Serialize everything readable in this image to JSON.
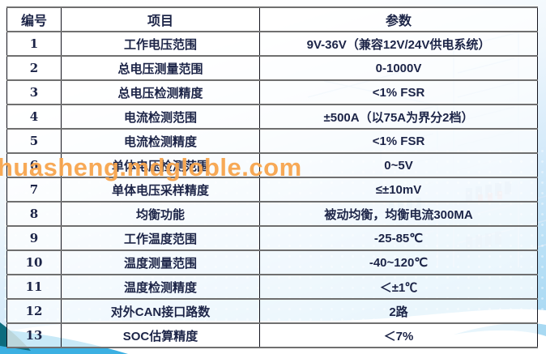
{
  "watermark": "huasheng.mdgloble.com",
  "table": {
    "headers": [
      "编号",
      "项目",
      "参数"
    ],
    "rows": [
      {
        "no": "1",
        "item": "工作电压范围",
        "param": "9V-36V（兼容12V/24V供电系统）"
      },
      {
        "no": "2",
        "item": "总电压测量范围",
        "param": "0-1000V"
      },
      {
        "no": "3",
        "item": "总电压检测精度",
        "param": "<1% FSR"
      },
      {
        "no": "4",
        "item": "电流检测范围",
        "param": "±500A（以75A为界分2档）"
      },
      {
        "no": "5",
        "item": "电流检测精度",
        "param": "<1% FSR"
      },
      {
        "no": "6",
        "item": "单体电压检测范围",
        "param": "0~5V"
      },
      {
        "no": "7",
        "item": "单体电压采样精度",
        "param": "≤±10mV"
      },
      {
        "no": "8",
        "item": "均衡功能",
        "param": "被动均衡，均衡电流300MA"
      },
      {
        "no": "9",
        "item": "工作温度范围",
        "param": "-25-85℃"
      },
      {
        "no": "10",
        "item": "温度测量范围",
        "param": "-40~120℃"
      },
      {
        "no": "11",
        "item": "温度检测精度",
        "param": "＜±1℃"
      },
      {
        "no": "12",
        "item": "对外CAN接口路数",
        "param": "2路"
      },
      {
        "no": "13",
        "item": "SOC估算精度",
        "param": "＜7%"
      }
    ]
  },
  "colors": {
    "text": "#1c2447",
    "border_horizontal": "#6f6f6f",
    "border_vertical": "#15151e",
    "watermark_orange": "#f7a54e",
    "wave_blue": "#3cb0e2",
    "wave_teal": "#0c6c7e",
    "background_blue": "#a2d6f2"
  }
}
